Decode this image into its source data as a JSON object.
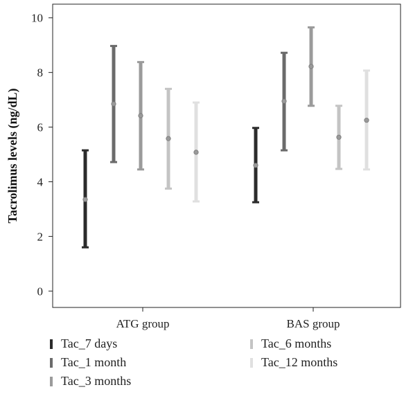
{
  "chart_data": {
    "type": "error-bar",
    "ylabel": "Tacrolimus levels (ng/dL)",
    "xlabel": "",
    "ylim": [
      -0.6,
      10.5
    ],
    "yticks": [
      0,
      2,
      4,
      6,
      8,
      10
    ],
    "categories": [
      "ATG group",
      "BAS group"
    ],
    "grid": false,
    "legend_position": "bottom",
    "series": [
      {
        "name": "Tac_7 days",
        "color": "#2b2b2b",
        "values": [
          {
            "mean": 3.35,
            "low": 1.6,
            "high": 5.15
          },
          {
            "mean": 4.6,
            "low": 3.25,
            "high": 5.97
          }
        ]
      },
      {
        "name": "Tac_1 month",
        "color": "#6b6b6b",
        "values": [
          {
            "mean": 6.85,
            "low": 4.72,
            "high": 8.97
          },
          {
            "mean": 6.95,
            "low": 5.15,
            "high": 8.72
          }
        ]
      },
      {
        "name": "Tac_3 months",
        "color": "#9b9b9b",
        "values": [
          {
            "mean": 6.42,
            "low": 4.45,
            "high": 8.38
          },
          {
            "mean": 8.22,
            "low": 6.78,
            "high": 9.65
          }
        ]
      },
      {
        "name": "Tac_6 months",
        "color": "#c4c4c4",
        "values": [
          {
            "mean": 5.58,
            "low": 3.75,
            "high": 7.4
          },
          {
            "mean": 5.63,
            "low": 4.47,
            "high": 6.78
          }
        ]
      },
      {
        "name": "Tac_12 months",
        "color": "#e0e0e0",
        "values": [
          {
            "mean": 5.08,
            "low": 3.28,
            "high": 6.9
          },
          {
            "mean": 6.25,
            "low": 4.45,
            "high": 8.07
          }
        ]
      }
    ]
  }
}
